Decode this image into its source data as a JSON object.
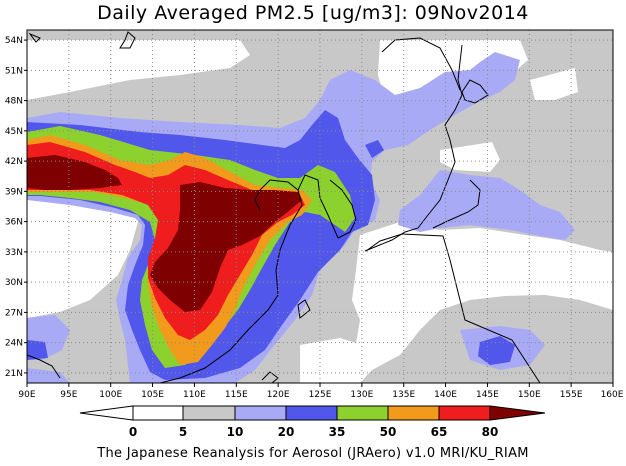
{
  "title": "Daily Averaged PM2.5 [ug/m3]: 09Nov2014",
  "footer": "The Japanese Reanalysis for Aerosol (JRAero) v1.0 MRI/KU_RIAM",
  "map": {
    "lon_range": [
      90,
      160
    ],
    "lat_range": [
      20,
      55
    ],
    "lon_ticks": [
      "90E",
      "95E",
      "100E",
      "105E",
      "110E",
      "115E",
      "120E",
      "125E",
      "130E",
      "135E",
      "140E",
      "145E",
      "150E",
      "155E",
      "160E"
    ],
    "lat_ticks": [
      "21N",
      "24N",
      "27N",
      "30N",
      "33N",
      "36N",
      "39N",
      "42N",
      "45N",
      "48N",
      "51N",
      "54N"
    ],
    "grid": "dotted",
    "variable": "PM2.5 concentration"
  },
  "colorbar": {
    "labels": [
      "0",
      "5",
      "10",
      "20",
      "35",
      "50",
      "65",
      "80"
    ],
    "bins": [
      {
        "range": "<0",
        "color": "#ffffff"
      },
      {
        "range": "0-5",
        "color": "#ffffff"
      },
      {
        "range": "5-10",
        "color": "#c8c8c8"
      },
      {
        "range": "10-20",
        "color": "#a9aaf6"
      },
      {
        "range": "20-35",
        "color": "#5257ec"
      },
      {
        "range": "35-50",
        "color": "#8cd12e"
      },
      {
        "range": "50-65",
        "color": "#f29a1c"
      },
      {
        "range": "65-80",
        "color": "#ef1d1d"
      },
      {
        "range": ">80",
        "color": "#7e0000"
      }
    ]
  }
}
